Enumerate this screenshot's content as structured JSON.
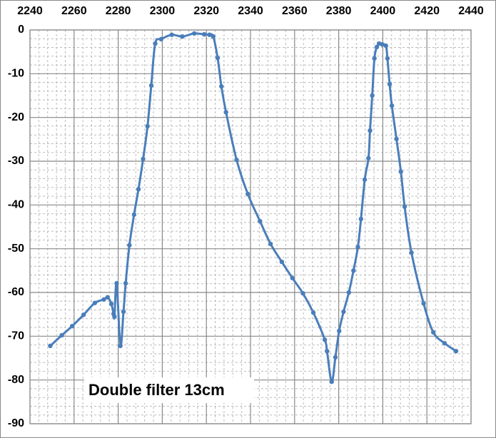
{
  "chart_data": {
    "type": "line",
    "annotation": "Double filter 13cm",
    "x": [
      2249.2,
      2254.4,
      2259.1,
      2264.3,
      2269.4,
      2273.5,
      2275.2,
      2276.9,
      2277.9,
      2278.3,
      2279.3,
      2281.0,
      2282.4,
      2283.4,
      2285.1,
      2287.2,
      2289.2,
      2291.3,
      2293.3,
      2295.0,
      2296.8,
      2299.5,
      2304.3,
      2309.1,
      2314.5,
      2319.0,
      2321.4,
      2323.1,
      2325.1,
      2326.8,
      2328.9,
      2333.7,
      2338.8,
      2344.3,
      2349.1,
      2354.2,
      2359.0,
      2363.8,
      2368.5,
      2373.7,
      2374.7,
      2376.8,
      2378.5,
      2380.2,
      2382.2,
      2384.6,
      2386.7,
      2388.7,
      2390.1,
      2391.8,
      2393.5,
      2394.2,
      2395.2,
      2396.2,
      2397.3,
      2398.3,
      2399.7,
      2401.4,
      2402.1,
      2403.1,
      2404.1,
      2406.2,
      2408.2,
      2409.9,
      2413.0,
      2418.5,
      2422.9,
      2428.0,
      2433.2
    ],
    "series": [
      {
        "color": "#4a7ebb",
        "values": [
          -72.2,
          -69.8,
          -67.7,
          -65.1,
          -62.4,
          -61.6,
          -61.1,
          -62.6,
          -64.9,
          -65.5,
          -57.9,
          -72.2,
          -64.4,
          -57.9,
          -49.2,
          -42.2,
          -36.4,
          -29.5,
          -22.0,
          -12.7,
          -3.1,
          -2.1,
          -1.1,
          -1.5,
          -0.8,
          -1.0,
          -1.1,
          -1.5,
          -6.4,
          -12.9,
          -18.8,
          -29.7,
          -37.5,
          -43.7,
          -48.9,
          -53.0,
          -56.7,
          -60.2,
          -64.6,
          -70.8,
          -73.4,
          -80.4,
          -74.8,
          -68.8,
          -64.4,
          -60.0,
          -55.0,
          -49.6,
          -43.2,
          -34.2,
          -29.3,
          -23.0,
          -15.0,
          -6.5,
          -3.9,
          -3.1,
          -3.3,
          -3.6,
          -6.5,
          -12.4,
          -17.3,
          -24.9,
          -32.4,
          -40.4,
          -50.9,
          -62.5,
          -69.1,
          -71.6,
          -73.4
        ]
      }
    ],
    "xlim": [
      2240,
      2440
    ],
    "xticks": [
      2240,
      2260,
      2280,
      2300,
      2320,
      2340,
      2360,
      2380,
      2400,
      2420,
      2440
    ],
    "ylim": [
      -90,
      0
    ],
    "yticks": [
      0,
      -10,
      -20,
      -30,
      -40,
      -50,
      -60,
      -70,
      -80,
      -90
    ],
    "grid": true
  }
}
